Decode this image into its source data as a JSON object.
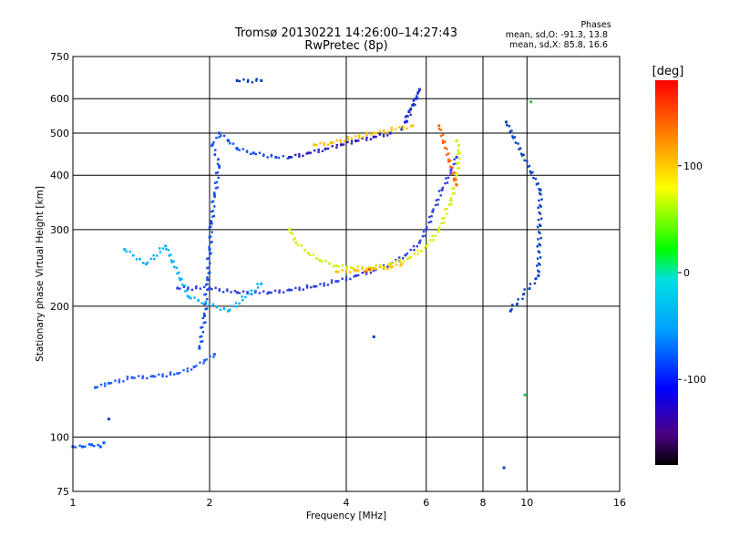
{
  "chart_data": {
    "type": "scatter",
    "title": "Tromsø 20130221 14:26:00–14:27:43",
    "subtitle": "RwPretec (8p)",
    "xlabel": "Frequency [MHz]",
    "ylabel": "Stationary phase Virtual Height [km]",
    "x_scale": "log",
    "y_scale": "log",
    "xlim": [
      1,
      16
    ],
    "ylim": [
      75,
      750
    ],
    "grid": true,
    "x_ticks": [
      "1",
      "2",
      "4",
      "6",
      "8",
      "10",
      "16"
    ],
    "x_tick_values": [
      1,
      2,
      4,
      6,
      8,
      10,
      16
    ],
    "y_ticks": [
      "75",
      "100",
      "200",
      "300",
      "400",
      "500",
      "600",
      "750"
    ],
    "y_tick_values": [
      75,
      100,
      200,
      300,
      400,
      500,
      600,
      750
    ],
    "stats": {
      "heading": "Phases",
      "line_o": "mean, sd,O: -91.3, 13.8",
      "line_x": "mean, sd,X: 85.8, 16.6"
    },
    "colorbar": {
      "label": "[deg]",
      "range": [
        -180,
        180
      ],
      "ticks": [
        "100",
        "0",
        "-100"
      ],
      "tick_values": [
        100,
        0,
        -100
      ]
    },
    "series": [
      {
        "color": "#0050ff",
        "phase": -100,
        "points": [
          [
            1.0,
            95
          ],
          [
            1.05,
            95
          ],
          [
            1.1,
            96
          ],
          [
            1.15,
            95
          ],
          [
            1.17,
            97
          ]
        ]
      },
      {
        "color": "#2060ff",
        "phase": -100,
        "points": [
          [
            1.12,
            130
          ],
          [
            1.2,
            133
          ],
          [
            1.35,
            137
          ],
          [
            1.5,
            138
          ],
          [
            1.7,
            140
          ],
          [
            1.85,
            145
          ],
          [
            1.95,
            150
          ],
          [
            2.05,
            155
          ]
        ]
      },
      {
        "color": "#1050f0",
        "phase": -100,
        "points": [
          [
            1.9,
            160
          ],
          [
            1.95,
            190
          ],
          [
            1.98,
            230
          ],
          [
            2.0,
            270
          ],
          [
            2.02,
            310
          ],
          [
            2.05,
            360
          ],
          [
            2.1,
            420
          ],
          [
            2.03,
            470
          ],
          [
            2.1,
            500
          ],
          [
            2.2,
            480
          ],
          [
            2.3,
            460
          ],
          [
            2.5,
            450
          ],
          [
            2.8,
            440
          ],
          [
            3.0,
            440
          ]
        ]
      },
      {
        "color": "#2a20c0",
        "phase": -110,
        "points": [
          [
            3.0,
            440
          ],
          [
            3.3,
            450
          ],
          [
            3.6,
            460
          ],
          [
            3.9,
            470
          ],
          [
            4.2,
            480
          ],
          [
            4.6,
            490
          ],
          [
            5.0,
            500
          ]
        ]
      },
      {
        "color": "#3040e0",
        "phase": -100,
        "points": [
          [
            1.7,
            220
          ],
          [
            2.0,
            220
          ],
          [
            2.3,
            215
          ],
          [
            2.7,
            215
          ],
          [
            3.0,
            218
          ],
          [
            3.4,
            222
          ],
          [
            3.8,
            228
          ],
          [
            4.2,
            235
          ],
          [
            4.6,
            242
          ],
          [
            5.0,
            250
          ],
          [
            5.4,
            262
          ],
          [
            5.8,
            280
          ],
          [
            6.0,
            300
          ],
          [
            6.2,
            330
          ],
          [
            6.5,
            370
          ],
          [
            6.8,
            410
          ],
          [
            7.0,
            440
          ]
        ]
      },
      {
        "color": "#1c30d0",
        "phase": -100,
        "points": [
          [
            5.3,
            510
          ],
          [
            5.5,
            560
          ],
          [
            5.7,
            600
          ],
          [
            5.8,
            630
          ],
          [
            5.6,
            580
          ],
          [
            5.4,
            530
          ]
        ]
      },
      {
        "color": "#d8ee00",
        "phase": 100,
        "points": [
          [
            3.0,
            300
          ],
          [
            3.1,
            280
          ],
          [
            3.3,
            265
          ],
          [
            3.5,
            255
          ],
          [
            3.8,
            248
          ],
          [
            4.1,
            245
          ],
          [
            4.5,
            245
          ],
          [
            5.0,
            250
          ],
          [
            5.5,
            258
          ],
          [
            6.0,
            275
          ],
          [
            6.4,
            300
          ],
          [
            6.8,
            350
          ],
          [
            7.0,
            400
          ],
          [
            7.1,
            450
          ],
          [
            7.0,
            480
          ]
        ]
      },
      {
        "color": "#ffc000",
        "phase": 120,
        "points": [
          [
            3.8,
            240
          ],
          [
            4.2,
            242
          ],
          [
            4.6,
            244
          ],
          [
            5.0,
            246
          ],
          [
            5.3,
            250
          ],
          [
            3.4,
            470
          ],
          [
            3.7,
            475
          ],
          [
            4.6,
            500
          ],
          [
            5.6,
            520
          ]
        ]
      },
      {
        "color": "#ff6000",
        "phase": 150,
        "points": [
          [
            4.4,
            240
          ],
          [
            4.5,
            243
          ],
          [
            6.4,
            520
          ],
          [
            7.0,
            380
          ]
        ]
      },
      {
        "color": "#00b0ff",
        "phase": -60,
        "points": [
          [
            1.3,
            270
          ],
          [
            1.45,
            250
          ],
          [
            1.6,
            275
          ],
          [
            1.8,
            210
          ],
          [
            2.2,
            195
          ],
          [
            2.6,
            225
          ]
        ]
      },
      {
        "color": "#20d040",
        "phase": 40,
        "points": [
          [
            10.2,
            590
          ],
          [
            9.9,
            125
          ]
        ]
      },
      {
        "color": "#0040c0",
        "phase": -110,
        "points": [
          [
            9.0,
            530
          ],
          [
            10.7,
            370
          ],
          [
            10.6,
            235
          ],
          [
            9.2,
            195
          ],
          [
            8.9,
            85
          ],
          [
            4.6,
            170
          ],
          [
            2.3,
            660
          ],
          [
            2.6,
            660
          ],
          [
            1.2,
            110
          ]
        ]
      }
    ]
  }
}
